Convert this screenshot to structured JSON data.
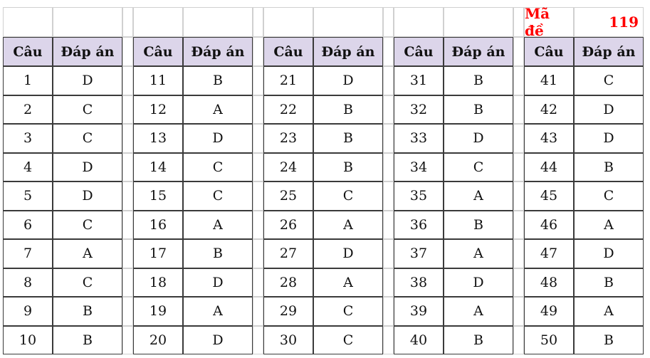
{
  "exam_code": {
    "label": "Mã đề",
    "value": "119"
  },
  "headers": {
    "question": "Câu",
    "answer": "Đáp án"
  },
  "colors": {
    "header_bg": "#dcd5ea",
    "exam_code": "#ff0000"
  },
  "groups": [
    {
      "rows": [
        [
          "1",
          "D"
        ],
        [
          "2",
          "C"
        ],
        [
          "3",
          "C"
        ],
        [
          "4",
          "D"
        ],
        [
          "5",
          "D"
        ],
        [
          "6",
          "C"
        ],
        [
          "7",
          "A"
        ],
        [
          "8",
          "C"
        ],
        [
          "9",
          "B"
        ],
        [
          "10",
          "B"
        ]
      ]
    },
    {
      "rows": [
        [
          "11",
          "B"
        ],
        [
          "12",
          "A"
        ],
        [
          "13",
          "D"
        ],
        [
          "14",
          "C"
        ],
        [
          "15",
          "C"
        ],
        [
          "16",
          "A"
        ],
        [
          "17",
          "B"
        ],
        [
          "18",
          "D"
        ],
        [
          "19",
          "A"
        ],
        [
          "20",
          "D"
        ]
      ]
    },
    {
      "rows": [
        [
          "21",
          "D"
        ],
        [
          "22",
          "B"
        ],
        [
          "23",
          "B"
        ],
        [
          "24",
          "B"
        ],
        [
          "25",
          "C"
        ],
        [
          "26",
          "A"
        ],
        [
          "27",
          "D"
        ],
        [
          "28",
          "A"
        ],
        [
          "29",
          "C"
        ],
        [
          "30",
          "C"
        ]
      ]
    },
    {
      "rows": [
        [
          "31",
          "B"
        ],
        [
          "32",
          "B"
        ],
        [
          "33",
          "D"
        ],
        [
          "34",
          "C"
        ],
        [
          "35",
          "A"
        ],
        [
          "36",
          "B"
        ],
        [
          "37",
          "A"
        ],
        [
          "38",
          "D"
        ],
        [
          "39",
          "A"
        ],
        [
          "40",
          "B"
        ]
      ]
    },
    {
      "rows": [
        [
          "41",
          "C"
        ],
        [
          "42",
          "D"
        ],
        [
          "43",
          "D"
        ],
        [
          "44",
          "B"
        ],
        [
          "45",
          "C"
        ],
        [
          "46",
          "A"
        ],
        [
          "47",
          "D"
        ],
        [
          "48",
          "B"
        ],
        [
          "49",
          "A"
        ],
        [
          "50",
          "B"
        ]
      ]
    }
  ]
}
